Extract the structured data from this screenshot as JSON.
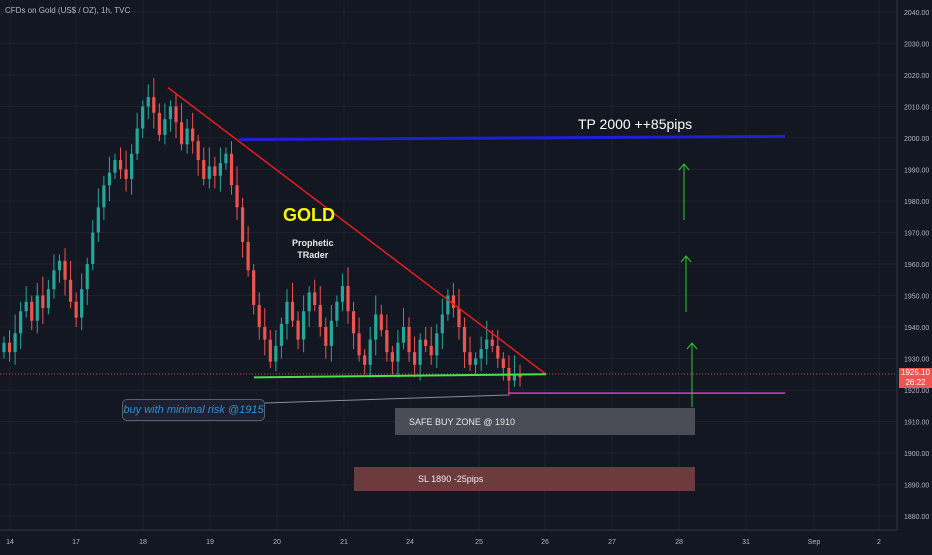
{
  "header": {
    "title": "CFDs on Gold (US$ / OZ), 1h, TVC"
  },
  "price_axis": {
    "ticks": [
      "2040.00",
      "2030.00",
      "2020.00",
      "2010.00",
      "2000.00",
      "1990.00",
      "1980.00",
      "1970.00",
      "1960.00",
      "1950.00",
      "1940.00",
      "1930.00",
      "1920.00",
      "1910.00",
      "1900.00",
      "1890.00",
      "1880.00"
    ],
    "tick_values": [
      2040,
      2030,
      2020,
      2010,
      2000,
      1990,
      1980,
      1970,
      1960,
      1950,
      1940,
      1930,
      1920,
      1910,
      1900,
      1890,
      1880
    ],
    "current_price": "1925.10",
    "countdown": "26:22"
  },
  "time_axis": {
    "ticks": [
      "14",
      "17",
      "18",
      "19",
      "20",
      "21",
      "24",
      "25",
      "26",
      "27",
      "28",
      "31",
      "Sep",
      "2"
    ]
  },
  "annotations": {
    "gold_label": "GOLD",
    "brand_line1": "Prophetic",
    "brand_line2": "TRader",
    "tp_label": "TP 2000    ++85pips",
    "note": "buy with minimal risk  @1915",
    "safe_zone": "SAFE BUY ZONE @ 1910",
    "sl_zone": "SL 1890    -25pips"
  },
  "colors": {
    "background": "#131722",
    "up": "#26a69a",
    "down": "#ef5350",
    "trendline": "#e81c1c",
    "support": "#4ce04c",
    "target_line": "#1f1fd6",
    "entry_line": "#d63ad6",
    "arrows": "#2fc92f"
  },
  "chart_data": {
    "type": "candlestick",
    "title": "CFDs on Gold (US$ / OZ), 1h, TVC",
    "ylim": [
      1876,
      2043
    ],
    "x_ticks": [
      "14",
      "17",
      "18",
      "19",
      "20",
      "21",
      "24",
      "25",
      "26",
      "27",
      "28",
      "31",
      "Sep",
      "2"
    ],
    "levels": {
      "take_profit": 2000,
      "entry": 1915,
      "safe_buy_zone": 1910,
      "stop_loss": 1890,
      "current": 1925.1
    },
    "close_path": [
      1935,
      1932,
      1938,
      1945,
      1948,
      1942,
      1950,
      1946,
      1952,
      1958,
      1961,
      1955,
      1948,
      1943,
      1952,
      1960,
      1970,
      1978,
      1985,
      1989,
      1993,
      1990,
      1987,
      1995,
      2003,
      2010,
      2013,
      2008,
      2001,
      2006,
      2010,
      2005,
      1998,
      2003,
      1999,
      1993,
      1987,
      1991,
      1988,
      1992,
      1995,
      1985,
      1978,
      1967,
      1958,
      1947,
      1940,
      1936,
      1929,
      1934,
      1941,
      1948,
      1942,
      1936,
      1945,
      1951,
      1947,
      1940,
      1934,
      1942,
      1948,
      1953,
      1945,
      1938,
      1931,
      1928,
      1936,
      1944,
      1939,
      1932,
      1929,
      1935,
      1940,
      1932,
      1928,
      1936,
      1934,
      1931,
      1938,
      1944,
      1950,
      1946,
      1940,
      1932,
      1928,
      1930,
      1933,
      1936,
      1934,
      1930,
      1927,
      1923,
      1925,
      1924
    ]
  }
}
